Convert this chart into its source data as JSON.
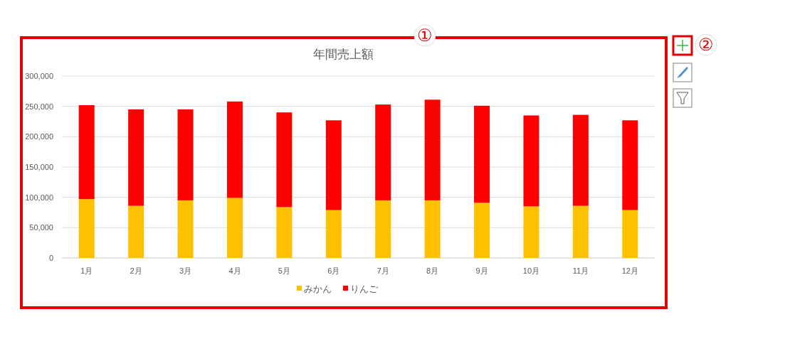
{
  "chart_data": {
    "type": "bar",
    "title": "年間売上額",
    "categories": [
      "1月",
      "2月",
      "3月",
      "4月",
      "5月",
      "6月",
      "7月",
      "8月",
      "9月",
      "10月",
      "11月",
      "12月"
    ],
    "stacked": true,
    "series": [
      {
        "name": "みかん",
        "color": "#ffc000",
        "values": [
          97000,
          86000,
          95000,
          99000,
          84000,
          79000,
          95000,
          95000,
          91000,
          85000,
          86000,
          79000
        ]
      },
      {
        "name": "りんご",
        "color": "#ff0000",
        "values": [
          155000,
          159000,
          150000,
          159000,
          156000,
          148000,
          158000,
          166000,
          160000,
          150000,
          150000,
          148000
        ]
      }
    ],
    "ylim": [
      0,
      300000
    ],
    "yticks": [
      {
        "value": 0,
        "label": "0"
      },
      {
        "value": 50000,
        "label": "50,000"
      },
      {
        "value": 100000,
        "label": "100,000"
      },
      {
        "value": 150000,
        "label": "150,000"
      },
      {
        "value": 200000,
        "label": "200,000"
      },
      {
        "value": 250000,
        "label": "250,000"
      },
      {
        "value": 300000,
        "label": "300,000"
      }
    ],
    "grid": "y",
    "legend": "bottom",
    "annotations": [
      "①",
      "②"
    ]
  }
}
